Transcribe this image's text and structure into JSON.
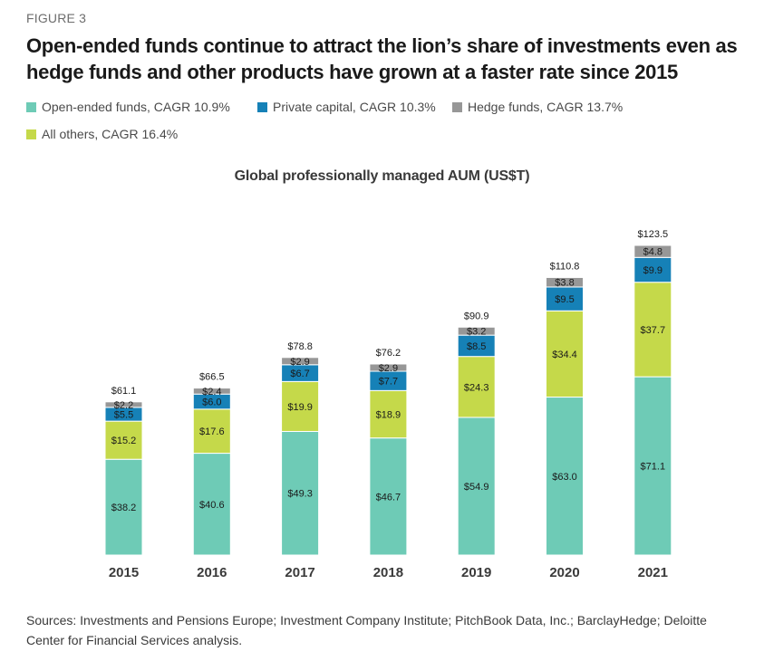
{
  "figure_label": "FIGURE 3",
  "headline": "Open-ended funds continue to attract the lion’s share of investments even as hedge funds and other products have grown at a faster rate since 2015",
  "sources": "Sources: Investments and Pensions Europe; Investment Company Institute; PitchBook Data, Inc.; BarclayHedge; Deloitte Center for Financial Services analysis.",
  "colors": {
    "open_ended": "#6ecbb6",
    "all_others": "#c5d94a",
    "private_capital": "#1681b7",
    "hedge_funds": "#979797"
  },
  "chart_data": {
    "type": "bar",
    "stacked": true,
    "title": "Global professionally managed AUM (US$T)",
    "categories": [
      "2015",
      "2016",
      "2017",
      "2018",
      "2019",
      "2020",
      "2021"
    ],
    "series": [
      {
        "name": "Open-ended funds, CAGR 10.9%",
        "color": "#6ecbb6",
        "values": [
          38.2,
          40.6,
          49.3,
          46.7,
          54.9,
          63.0,
          71.1
        ]
      },
      {
        "name": "All others, CAGR 16.4%",
        "color": "#c5d94a",
        "values": [
          15.2,
          17.6,
          19.9,
          18.9,
          24.3,
          34.4,
          37.7
        ]
      },
      {
        "name": "Private capital, CAGR 10.3%",
        "color": "#1681b7",
        "values": [
          5.5,
          6.0,
          6.7,
          7.7,
          8.5,
          9.5,
          9.9
        ]
      },
      {
        "name": "Hedge funds, CAGR 13.7%",
        "color": "#979797",
        "values": [
          2.2,
          2.4,
          2.9,
          2.9,
          3.2,
          3.8,
          4.8
        ]
      }
    ],
    "value_labels": [
      [
        "$38.2",
        "$40.6",
        "$49.3",
        "$46.7",
        "$54.9",
        "$63.0",
        "$71.1"
      ],
      [
        "$15.2",
        "$17.6",
        "$19.9",
        "$18.9",
        "$24.3",
        "$34.4",
        "$37.7"
      ],
      [
        "$5.5",
        "$6.0",
        "$6.7",
        "$7.7",
        "$8.5",
        "$9.5",
        "$9.9"
      ],
      [
        "$2.2",
        "$2.4",
        "$2.9",
        "$2.9",
        "$3.2",
        "$3.8",
        "$4.8"
      ]
    ],
    "totals": [
      61.1,
      66.5,
      78.8,
      76.2,
      90.9,
      110.8,
      123.5
    ],
    "total_labels": [
      "$61.1",
      "$66.5",
      "$78.8",
      "$76.2",
      "$90.9",
      "$110.8",
      "$123.5"
    ],
    "legend_order": [
      "Open-ended funds, CAGR 10.9%",
      "Private capital, CAGR 10.3%",
      "Hedge funds, CAGR 13.7%",
      "All others, CAGR 16.4%"
    ],
    "legend_position": "top-left",
    "ylim": [
      0,
      123.5
    ],
    "grid": false
  }
}
